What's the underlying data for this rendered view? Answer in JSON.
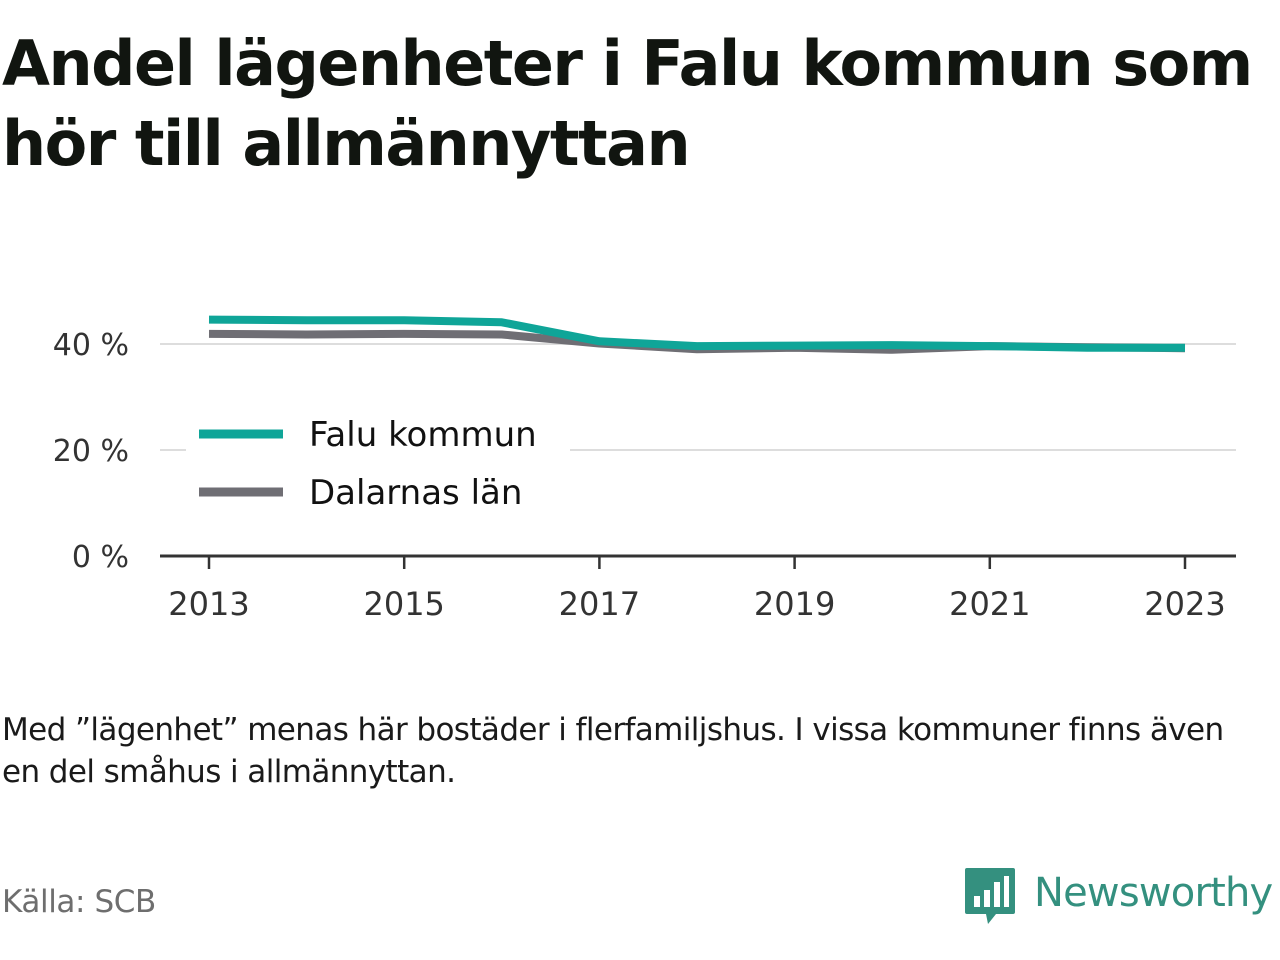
{
  "title": "Andel lägenheter i Falu kommun som hör till allmännyttan",
  "note": "Med ”lägenhet” menas här bostäder i flerfamiljshus. I vissa kommuner finns även en del småhus i allmännyttan.",
  "source": "Källa: SCB",
  "brand": {
    "name": "Newsworthy",
    "logo_icon": "bar-chart-speech-bubble-icon",
    "color": "#34907f"
  },
  "chart_data": {
    "type": "line",
    "title": "Andel lägenheter i Falu kommun som hör till allmännyttan",
    "xlabel": "",
    "ylabel": "",
    "x": [
      2013,
      2014,
      2015,
      2016,
      2017,
      2018,
      2019,
      2020,
      2021,
      2022,
      2023
    ],
    "x_ticks": [
      "2013",
      "2015",
      "2017",
      "2019",
      "2021",
      "2023"
    ],
    "y_ticks": [
      "0 %",
      "20 %",
      "40 %"
    ],
    "ylim": [
      0,
      48
    ],
    "grid": true,
    "legend_position": "center-left",
    "series": [
      {
        "name": "Falu kommun",
        "color": "#0fa598",
        "values": [
          44.6,
          44.5,
          44.5,
          44.1,
          40.5,
          39.6,
          39.7,
          39.8,
          39.6,
          39.3,
          39.3
        ]
      },
      {
        "name": "Dalarnas län",
        "color": "#6f6e74",
        "values": [
          41.9,
          41.8,
          41.9,
          41.8,
          40.1,
          39.0,
          39.3,
          38.9,
          39.6,
          39.4,
          39.2
        ]
      }
    ]
  }
}
